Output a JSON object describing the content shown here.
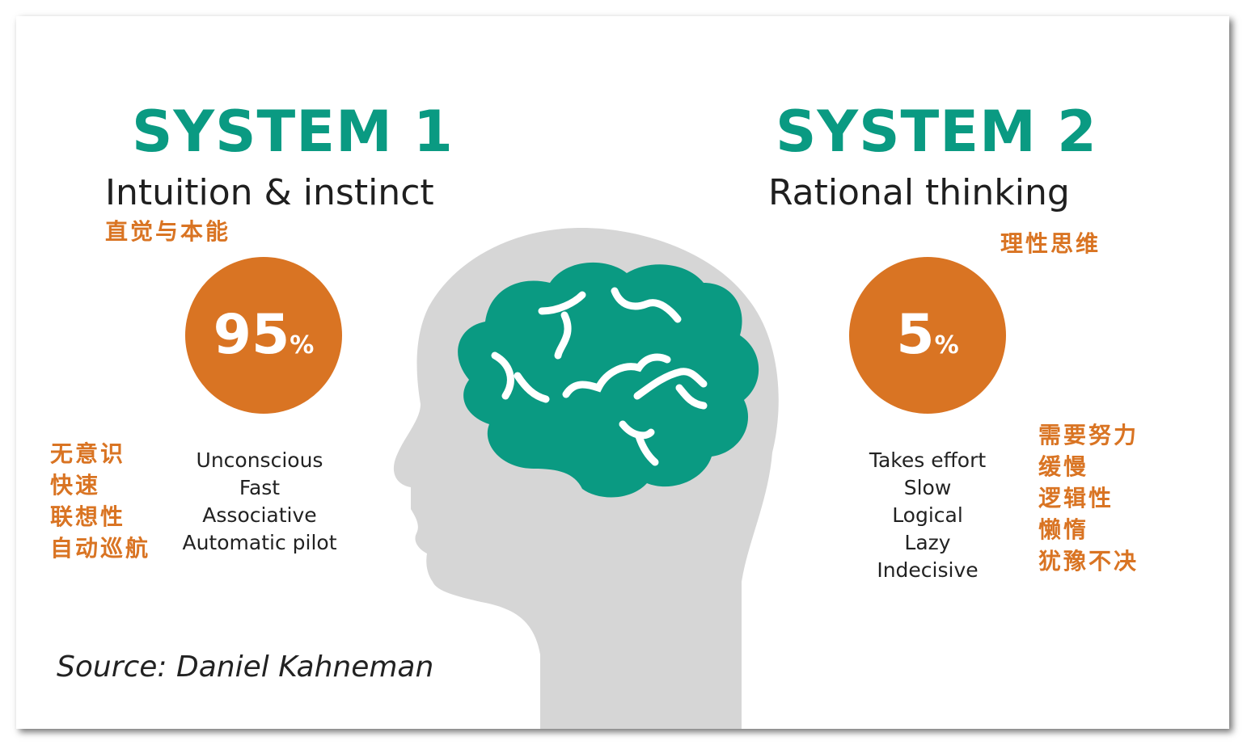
{
  "colors": {
    "teal": "#0a9a82",
    "orange": "#d97423",
    "head": "#d6d6d6",
    "brain_line": "#ffffff"
  },
  "system1": {
    "title": "SYSTEM 1",
    "subtitle": "Intuition & instinct",
    "subtitle_cn": "直觉与本能",
    "percent_value": "95",
    "percent_sign": "%",
    "traits": [
      "Unconscious",
      "Fast",
      "Associative",
      "Automatic pilot"
    ],
    "traits_cn": [
      "无意识",
      "快速",
      "联想性",
      "自动巡航"
    ]
  },
  "system2": {
    "title": "SYSTEM 2",
    "subtitle": "Rational thinking",
    "subtitle_cn": "理性思维",
    "percent_value": "5",
    "percent_sign": "%",
    "traits": [
      "Takes effort",
      "Slow",
      "Logical",
      "Lazy",
      "Indecisive"
    ],
    "traits_cn": [
      "需要努力",
      "缓慢",
      "逻辑性",
      "懒惰",
      "犹豫不决"
    ]
  },
  "source": "Source: Daniel Kahneman"
}
